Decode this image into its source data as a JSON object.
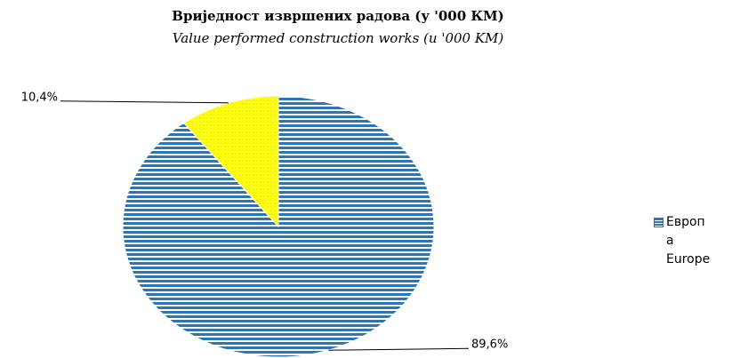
{
  "chart_data": {
    "type": "pie",
    "title": "Вриједност извршених радова (у '000 КМ)",
    "subtitle": "Value performed construction works (u '000 KM)",
    "categories": [
      "Европа Europe",
      null
    ],
    "values": [
      89.6,
      10.4
    ],
    "value_labels": [
      "89,6%",
      "10,4%"
    ],
    "colors": [
      "#2e75b6",
      "#ffff00"
    ],
    "legend": "right"
  }
}
